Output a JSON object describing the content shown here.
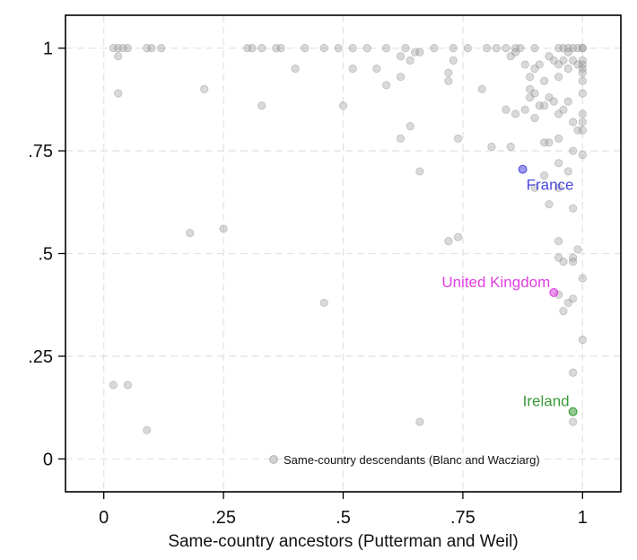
{
  "chart_data": {
    "type": "scatter",
    "title": "",
    "xlabel": "Same-country ancestors (Putterman and Weil)",
    "ylabel": "",
    "xlim": [
      -0.08,
      1.08
    ],
    "ylim": [
      -0.08,
      1.08
    ],
    "x_ticks": [
      {
        "value": 0,
        "label": "0"
      },
      {
        "value": 0.25,
        "label": ".25"
      },
      {
        "value": 0.5,
        "label": ".5"
      },
      {
        "value": 0.75,
        "label": ".75"
      },
      {
        "value": 1,
        "label": "1"
      }
    ],
    "y_ticks": [
      {
        "value": 0,
        "label": "0"
      },
      {
        "value": 0.25,
        "label": ".25"
      },
      {
        "value": 0.5,
        "label": ".5"
      },
      {
        "value": 0.75,
        "label": ".75"
      },
      {
        "value": 1,
        "label": "1"
      }
    ],
    "grid": true,
    "legend": {
      "position": "bottom-right",
      "entries": [
        "Same-country descendants (Blanc and Wacziarg)"
      ]
    },
    "colors": {
      "points": "#9c9c9c",
      "france": "#4a4ae0",
      "united_kingdom": "#e040e0",
      "ireland": "#3a9a3a",
      "grid": "#e4e4e4",
      "frame": "#000000"
    },
    "series": [
      {
        "name": "Same-country descendants (Blanc and Wacziarg)",
        "points": [
          [
            0.02,
            1.0
          ],
          [
            0.03,
            1.0
          ],
          [
            0.04,
            1.0
          ],
          [
            0.05,
            1.0
          ],
          [
            0.09,
            1.0
          ],
          [
            0.1,
            1.0
          ],
          [
            0.12,
            1.0
          ],
          [
            0.3,
            1.0
          ],
          [
            0.31,
            1.0
          ],
          [
            0.33,
            1.0
          ],
          [
            0.36,
            1.0
          ],
          [
            0.37,
            1.0
          ],
          [
            0.42,
            1.0
          ],
          [
            0.46,
            1.0
          ],
          [
            0.49,
            1.0
          ],
          [
            0.52,
            1.0
          ],
          [
            0.55,
            1.0
          ],
          [
            0.59,
            1.0
          ],
          [
            0.63,
            1.0
          ],
          [
            0.69,
            1.0
          ],
          [
            0.73,
            1.0
          ],
          [
            0.76,
            1.0
          ],
          [
            0.8,
            1.0
          ],
          [
            0.82,
            1.0
          ],
          [
            0.84,
            1.0
          ],
          [
            0.86,
            1.0
          ],
          [
            0.87,
            1.0
          ],
          [
            0.9,
            1.0
          ],
          [
            0.95,
            1.0
          ],
          [
            0.96,
            1.0
          ],
          [
            0.97,
            1.0
          ],
          [
            0.98,
            1.0
          ],
          [
            0.99,
            1.0
          ],
          [
            1.0,
            1.0
          ],
          [
            1.0,
            1.0
          ],
          [
            0.03,
            0.98
          ],
          [
            0.03,
            0.89
          ],
          [
            0.21,
            0.9
          ],
          [
            0.4,
            0.95
          ],
          [
            0.33,
            0.86
          ],
          [
            0.5,
            0.86
          ],
          [
            0.52,
            0.95
          ],
          [
            0.57,
            0.95
          ],
          [
            0.59,
            0.91
          ],
          [
            0.62,
            0.93
          ],
          [
            0.62,
            0.98
          ],
          [
            0.64,
            0.97
          ],
          [
            0.65,
            0.99
          ],
          [
            0.66,
            0.99
          ],
          [
            0.72,
            0.92
          ],
          [
            0.72,
            0.94
          ],
          [
            0.73,
            0.97
          ],
          [
            0.79,
            0.9
          ],
          [
            0.85,
            0.98
          ],
          [
            0.86,
            0.99
          ],
          [
            0.88,
            0.96
          ],
          [
            0.89,
            0.93
          ],
          [
            0.89,
            0.9
          ],
          [
            0.9,
            0.95
          ],
          [
            0.91,
            0.96
          ],
          [
            0.92,
            0.92
          ],
          [
            0.93,
            0.98
          ],
          [
            0.94,
            0.97
          ],
          [
            0.95,
            0.96
          ],
          [
            0.95,
            0.93
          ],
          [
            0.96,
            0.97
          ],
          [
            0.97,
            0.95
          ],
          [
            0.97,
            0.99
          ],
          [
            0.98,
            0.97
          ],
          [
            0.99,
            0.96
          ],
          [
            1.0,
            0.97
          ],
          [
            1.0,
            0.96
          ],
          [
            1.0,
            0.95
          ],
          [
            1.0,
            0.94
          ],
          [
            1.0,
            0.92
          ],
          [
            1.0,
            0.89
          ],
          [
            1.0,
            0.84
          ],
          [
            1.0,
            0.82
          ],
          [
            1.0,
            0.8
          ],
          [
            1.0,
            0.74
          ],
          [
            0.89,
            0.88
          ],
          [
            0.9,
            0.89
          ],
          [
            0.91,
            0.86
          ],
          [
            0.92,
            0.86
          ],
          [
            0.93,
            0.88
          ],
          [
            0.94,
            0.87
          ],
          [
            0.95,
            0.84
          ],
          [
            0.96,
            0.85
          ],
          [
            0.97,
            0.87
          ],
          [
            0.98,
            0.82
          ],
          [
            0.99,
            0.8
          ],
          [
            0.86,
            0.84
          ],
          [
            0.84,
            0.85
          ],
          [
            0.88,
            0.85
          ],
          [
            0.9,
            0.83
          ],
          [
            0.95,
            0.78
          ],
          [
            0.93,
            0.77
          ],
          [
            0.92,
            0.77
          ],
          [
            0.85,
            0.76
          ],
          [
            0.81,
            0.76
          ],
          [
            0.64,
            0.81
          ],
          [
            0.62,
            0.78
          ],
          [
            0.74,
            0.78
          ],
          [
            0.98,
            0.75
          ],
          [
            0.95,
            0.72
          ],
          [
            0.97,
            0.7
          ],
          [
            0.9,
            0.66
          ],
          [
            0.92,
            0.69
          ],
          [
            0.95,
            0.66
          ],
          [
            0.98,
            0.61
          ],
          [
            0.93,
            0.62
          ],
          [
            0.66,
            0.7
          ],
          [
            0.74,
            0.54
          ],
          [
            0.72,
            0.53
          ],
          [
            0.18,
            0.55
          ],
          [
            0.25,
            0.56
          ],
          [
            0.95,
            0.53
          ],
          [
            0.95,
            0.49
          ],
          [
            0.96,
            0.48
          ],
          [
            0.98,
            0.49
          ],
          [
            0.99,
            0.51
          ],
          [
            0.98,
            0.48
          ],
          [
            1.0,
            0.44
          ],
          [
            0.95,
            0.4
          ],
          [
            0.98,
            0.39
          ],
          [
            0.97,
            0.38
          ],
          [
            0.96,
            0.36
          ],
          [
            0.46,
            0.38
          ],
          [
            1.0,
            0.29
          ],
          [
            0.98,
            0.21
          ],
          [
            0.02,
            0.18
          ],
          [
            0.05,
            0.18
          ],
          [
            0.09,
            0.07
          ],
          [
            0.66,
            0.09
          ],
          [
            0.98,
            0.09
          ]
        ]
      }
    ],
    "highlights": [
      {
        "label": "France",
        "x": 0.875,
        "y": 0.705,
        "color_key": "france"
      },
      {
        "label": "United Kingdom",
        "x": 0.94,
        "y": 0.405,
        "color_key": "united_kingdom"
      },
      {
        "label": "Ireland",
        "x": 0.98,
        "y": 0.115,
        "color_key": "ireland"
      }
    ]
  }
}
